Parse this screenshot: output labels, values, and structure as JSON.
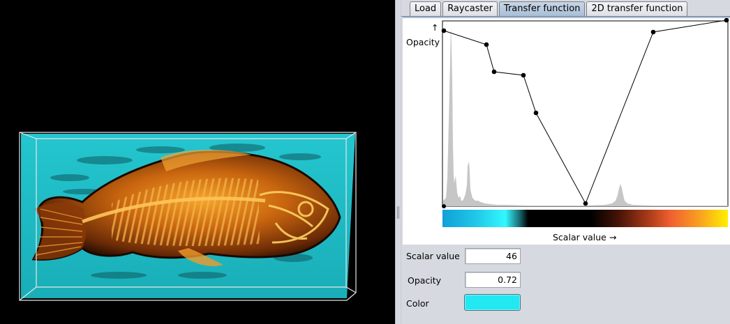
{
  "tabs": [
    {
      "label": "Load"
    },
    {
      "label": "Raycaster"
    },
    {
      "label": "Transfer function",
      "active": true
    },
    {
      "label": "2D transfer function"
    }
  ],
  "editor": {
    "y_label": "Opacity",
    "y_arrow": "↑",
    "x_label": "Scalar value →"
  },
  "fields": {
    "scalar_value": {
      "label": "Scalar value",
      "value": "46"
    },
    "opacity": {
      "label": "Opacity",
      "value": "0.72"
    },
    "color": {
      "label": "Color",
      "value": "#22e8f2"
    }
  },
  "colors": {
    "panel_bg": "#d6d9df",
    "active_tab": "#a9bfd6",
    "fish_orange": "#e07a10",
    "volume_cyan": "#22c4cc"
  }
}
